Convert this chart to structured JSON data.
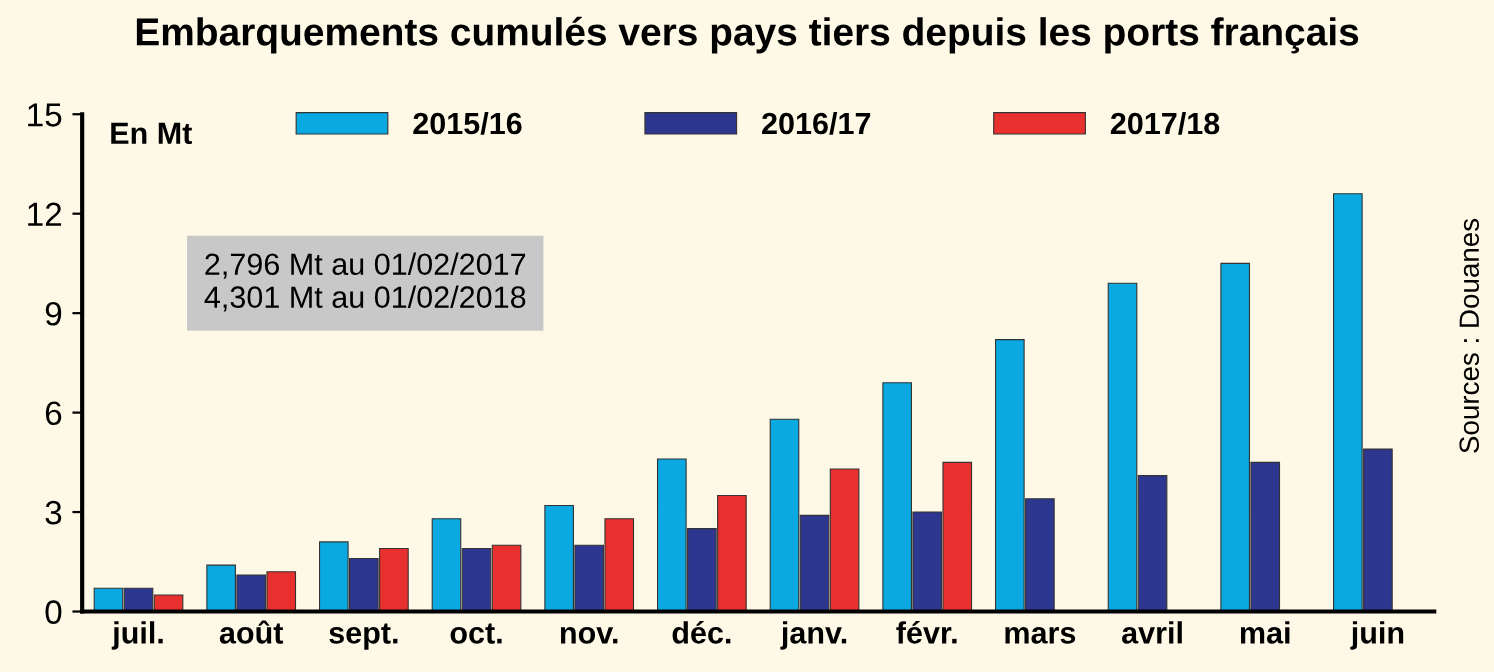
{
  "chart_data": {
    "type": "bar",
    "title": "Embarquements cumulés vers pays tiers depuis les ports français",
    "ylabel": "En Mt",
    "categories": [
      "juil.",
      "août",
      "sept.",
      "oct.",
      "nov.",
      "déc.",
      "janv.",
      "févr.",
      "mars",
      "avril",
      "mai",
      "juin"
    ],
    "series": [
      {
        "name": "2015/16",
        "color": "#0aa9e2",
        "values": [
          0.7,
          1.4,
          2.1,
          2.8,
          3.2,
          4.6,
          5.8,
          6.9,
          8.2,
          9.9,
          10.5,
          12.6
        ]
      },
      {
        "name": "2016/17",
        "color": "#2e3790",
        "values": [
          0.7,
          1.1,
          1.6,
          1.9,
          2.0,
          2.5,
          2.9,
          3.0,
          3.4,
          4.1,
          4.5,
          4.9
        ]
      },
      {
        "name": "2017/18",
        "color": "#e8312f",
        "values": [
          0.5,
          1.2,
          1.9,
          2.0,
          2.8,
          3.5,
          4.3,
          4.5,
          null,
          null,
          null,
          null
        ]
      }
    ],
    "ylim": [
      0,
      15
    ],
    "yticks": [
      0,
      3,
      6,
      9,
      12,
      15
    ],
    "grid": false,
    "legend": "top",
    "annotations": [
      "2,796 Mt au 01/02/2017",
      "4,301 Mt au 01/02/2018",
      "Sources : Douanes"
    ]
  }
}
